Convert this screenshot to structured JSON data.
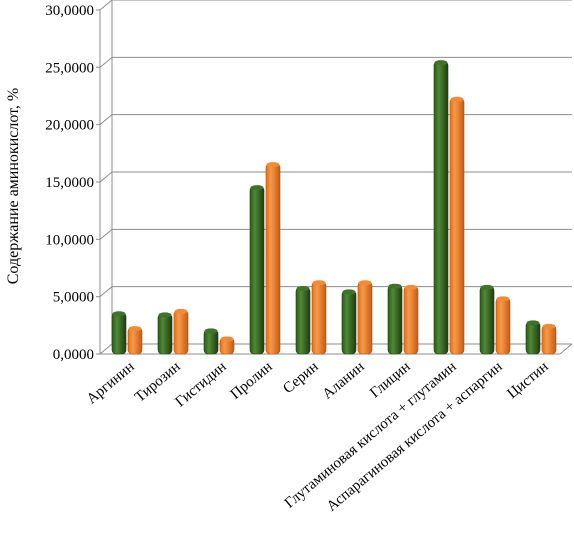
{
  "chart_data": {
    "type": "bar",
    "title": "",
    "xlabel": "",
    "ylabel": "Содержание аминокислот, %",
    "ylim": [
      0,
      30
    ],
    "yticks": [
      "0,0000",
      "5,0000",
      "10,0000",
      "15,0000",
      "20,0000",
      "25,0000",
      "30,0000"
    ],
    "grid": true,
    "legend": "none",
    "categories": [
      "Аргинин",
      "Тирозин",
      "Гистидин",
      "Пролин",
      "Серин",
      "Аланин",
      "Глицин",
      "Глутаминовая кислота + глутамин",
      "Аспарагиновая кислота + аспаргин",
      "Цистин"
    ],
    "series": [
      {
        "color": "#2e5a1c",
        "values": [
          3.6,
          3.5,
          2.1,
          14.6,
          5.8,
          5.5,
          6.0,
          25.5,
          5.9,
          2.8
        ]
      },
      {
        "color": "#e8701a",
        "values": [
          2.3,
          3.8,
          1.4,
          16.6,
          6.3,
          6.3,
          5.9,
          22.3,
          4.9,
          2.5
        ]
      }
    ]
  }
}
